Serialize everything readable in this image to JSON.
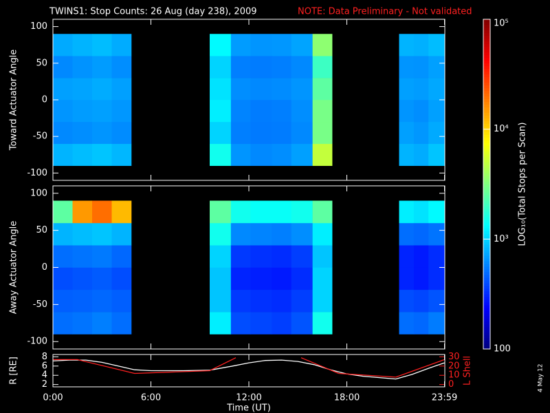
{
  "title": "TWINS1: Stop Counts: 26 Aug (day 238), 2009",
  "note": "NOTE: Data Preliminary - Not validated",
  "date_stamp": "4 May 12",
  "colorbar": {
    "label": "LOG₁₀(Total Stops per Scan)",
    "scale": "log",
    "colormap": "jet",
    "lim": [
      100,
      100000
    ],
    "ticks": [
      {
        "value": 100000,
        "label": "10⁵"
      },
      {
        "value": 10000,
        "label": "10⁴"
      },
      {
        "value": 1000,
        "label": "10³"
      },
      100
    ]
  },
  "chart_data": [
    {
      "type": "heatmap",
      "ylabel": "Toward Actuator Angle",
      "colormap": "jet",
      "scale": "log",
      "xlim": [
        0,
        24
      ],
      "ylim": [
        -110,
        110
      ],
      "yticks": [
        100,
        50,
        0,
        -50,
        -100
      ],
      "x_edges": [
        0,
        1.2,
        2.4,
        3.6,
        4.8,
        9.6,
        10.9,
        12.1,
        13.4,
        14.6,
        15.9,
        17.1,
        21.2,
        22.1,
        23.0,
        23.98
      ],
      "y_edges": [
        -90,
        -60,
        -30,
        0,
        30,
        60,
        90
      ],
      "z": [
        [
          800,
          600,
          650,
          700,
          600,
          750
        ],
        [
          850,
          620,
          680,
          720,
          640,
          800
        ],
        [
          900,
          650,
          700,
          760,
          680,
          850
        ],
        [
          820,
          610,
          660,
          700,
          620,
          760
        ],
        [
          null,
          null,
          null,
          null,
          null,
          null
        ],
        [
          1500,
          1000,
          1200,
          1100,
          1000,
          1300
        ],
        [
          650,
          560,
          580,
          620,
          560,
          680
        ],
        [
          600,
          540,
          550,
          600,
          550,
          650
        ],
        [
          620,
          550,
          560,
          610,
          560,
          660
        ],
        [
          700,
          600,
          620,
          650,
          600,
          720
        ],
        [
          5000,
          3000,
          3000,
          2500,
          2000,
          3500
        ],
        [
          null,
          null,
          null,
          null,
          null,
          null
        ],
        [
          800,
          700,
          650,
          700,
          650,
          800
        ],
        [
          760,
          660,
          620,
          680,
          640,
          780
        ],
        [
          900,
          750,
          700,
          740,
          700,
          850
        ]
      ]
    },
    {
      "type": "heatmap",
      "ylabel": "Away Actuator Angle",
      "colormap": "jet",
      "scale": "log",
      "xlim": [
        0,
        24
      ],
      "ylim": [
        -110,
        110
      ],
      "yticks": [
        100,
        50,
        0,
        -50,
        -100
      ],
      "x_edges": [
        0,
        1.2,
        2.4,
        3.6,
        4.8,
        9.6,
        10.9,
        12.1,
        13.4,
        14.6,
        15.9,
        17.1,
        21.2,
        22.1,
        23.0,
        23.98
      ],
      "y_edges": [
        -90,
        -60,
        -30,
        0,
        30,
        60,
        90
      ],
      "z": [
        [
          500,
          450,
          400,
          500,
          800,
          2500
        ],
        [
          520,
          460,
          420,
          520,
          850,
          15000
        ],
        [
          560,
          480,
          440,
          540,
          900,
          20000
        ],
        [
          500,
          450,
          400,
          480,
          800,
          12000
        ],
        [
          null,
          null,
          null,
          null,
          null,
          null
        ],
        [
          1200,
          900,
          900,
          1000,
          1500,
          2500
        ],
        [
          400,
          350,
          300,
          350,
          600,
          1500
        ],
        [
          380,
          330,
          290,
          330,
          580,
          1400
        ],
        [
          360,
          320,
          280,
          320,
          560,
          1400
        ],
        [
          420,
          360,
          320,
          360,
          620,
          1500
        ],
        [
          1500,
          1000,
          1000,
          900,
          1200,
          2500
        ],
        [
          null,
          null,
          null,
          null,
          null,
          null
        ],
        [
          500,
          400,
          300,
          300,
          500,
          1200
        ],
        [
          480,
          380,
          280,
          280,
          480,
          1100
        ],
        [
          550,
          420,
          320,
          320,
          520,
          1300
        ]
      ]
    },
    {
      "type": "line",
      "ylabel": "R [RE]",
      "y2label": "L Shell",
      "xlabel": "Time (UT)",
      "xlim": [
        0,
        24
      ],
      "ylim": [
        1.5,
        8.5
      ],
      "yticks": [
        2,
        4,
        6,
        8
      ],
      "y2lim": [
        -2.5,
        32.5
      ],
      "y2ticks": [
        0,
        10,
        20,
        30
      ],
      "xticks": [
        {
          "value": 0,
          "label": "0:00"
        },
        {
          "value": 6,
          "label": "6:00"
        },
        {
          "value": 12,
          "label": "12:00"
        },
        {
          "value": 18,
          "label": "18:00"
        },
        {
          "value": 23.98,
          "label": "23:59"
        }
      ],
      "series": [
        {
          "name": "R",
          "color": "#ffffff",
          "axis": "y",
          "x": [
            0,
            1,
            2,
            3,
            4,
            5,
            6,
            8,
            9.6,
            11,
            12,
            13,
            14,
            15,
            16,
            17,
            18,
            19,
            20,
            21,
            22,
            23,
            23.98
          ],
          "values": [
            7.1,
            7.3,
            7.3,
            6.8,
            6,
            5.2,
            5,
            5,
            5.1,
            6,
            6.7,
            7.2,
            7.3,
            7,
            6.3,
            5.2,
            4.3,
            3.8,
            3.5,
            3.2,
            4.2,
            5.5,
            6.7
          ]
        },
        {
          "name": "L Shell",
          "color": "#ff2020",
          "axis": "y2",
          "x": [
            0,
            1.5,
            5,
            9.6,
            11.2,
            13,
            15.2,
            17.5,
            21,
            23.98
          ],
          "values": [
            27,
            27,
            12,
            15,
            29,
            null,
            29,
            12,
            8,
            27
          ]
        }
      ]
    }
  ]
}
